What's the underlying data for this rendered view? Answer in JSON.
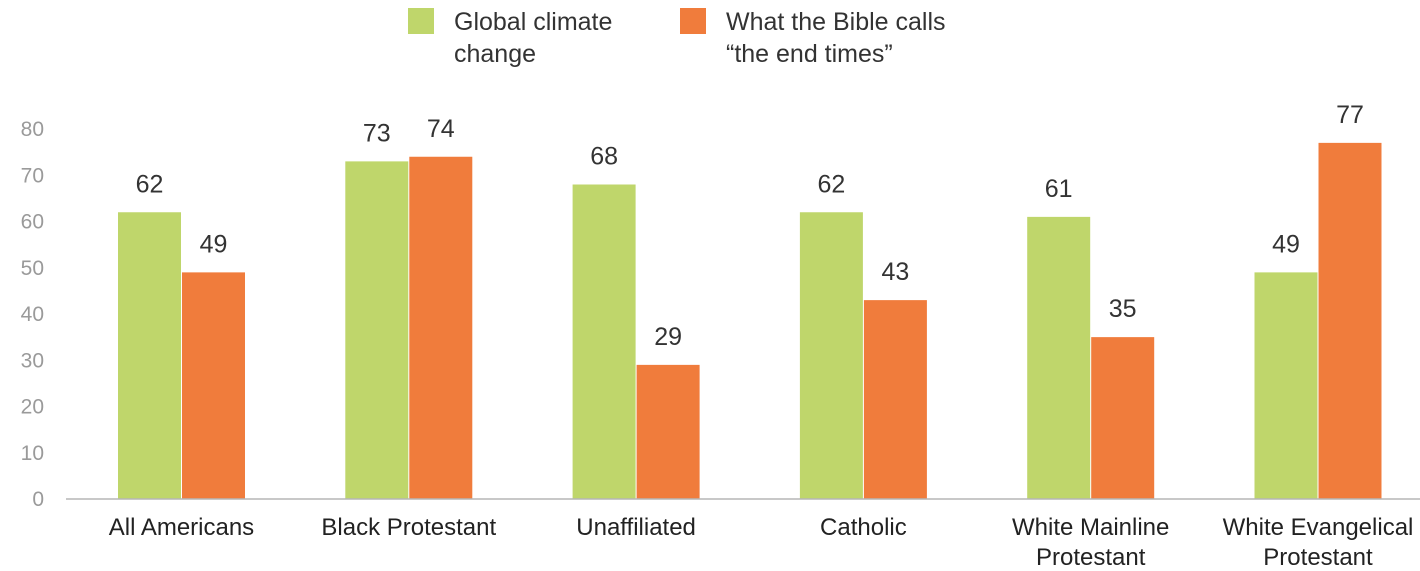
{
  "chart_data": {
    "type": "bar",
    "categories": [
      [
        "All Americans"
      ],
      [
        "Black Protestant"
      ],
      [
        "Unaffiliated"
      ],
      [
        "Catholic"
      ],
      [
        "White Mainline",
        "Protestant"
      ],
      [
        "White Evangelical",
        "Protestant"
      ]
    ],
    "series": [
      {
        "name": [
          "Global climate",
          "change"
        ],
        "color": "#bfd66b",
        "values": [
          62,
          73,
          68,
          62,
          61,
          49
        ]
      },
      {
        "name": [
          "What the Bible calls",
          "“the end times”"
        ],
        "color": "#f07c3c",
        "values": [
          49,
          74,
          29,
          43,
          35,
          77
        ]
      }
    ],
    "yticks": [
      0,
      10,
      20,
      30,
      40,
      50,
      60,
      70,
      80
    ],
    "ylim": [
      0,
      80
    ],
    "grid": false,
    "legend_position": "top-center",
    "axis_color": "#b5b5b5"
  }
}
